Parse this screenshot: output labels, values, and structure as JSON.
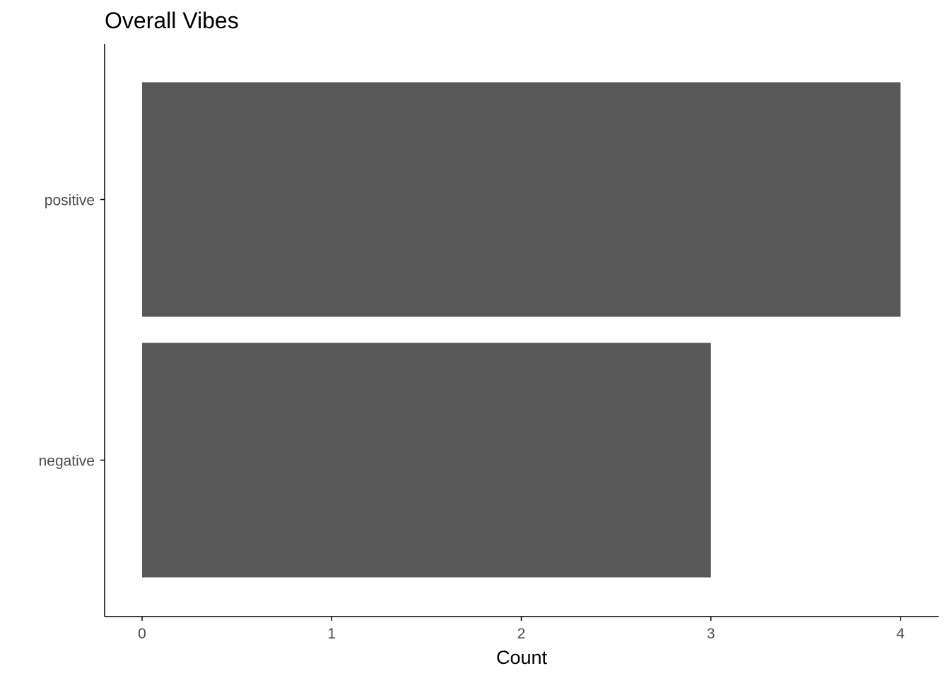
{
  "chart_data": {
    "type": "bar",
    "orientation": "horizontal",
    "title": "Overall Vibes",
    "xlabel": "Count",
    "ylabel": "",
    "categories": [
      "negative",
      "positive"
    ],
    "values": [
      3,
      4
    ],
    "xlim": [
      0,
      4
    ],
    "xticks": [
      "0",
      "1",
      "2",
      "3",
      "4"
    ],
    "grid": false,
    "legend": "none",
    "bar_color": "#595959",
    "axis_color": "#000000",
    "tick_label_color": "#4d4d4d"
  }
}
